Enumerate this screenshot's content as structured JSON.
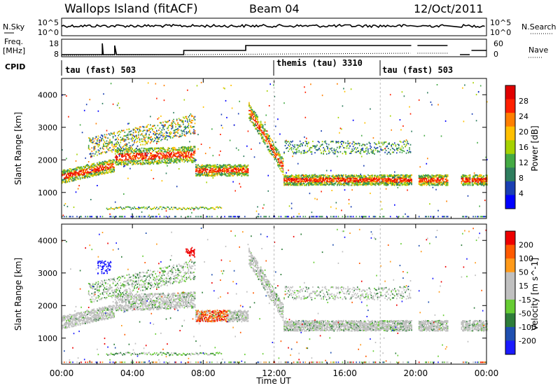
{
  "header": {
    "title": "Wallops Island (fitACF)",
    "beam": "Beam 04",
    "date": "12/Oct/2011"
  },
  "strip_labels": {
    "nsky": "N.Sky",
    "freq": "Freq.",
    "mhz": "[MHz]",
    "cpid": "CPID",
    "nsearch": "N.Search",
    "nave": "Nave",
    "nsky_ticks": [
      "10^5",
      "10^0"
    ],
    "freq_ticks": [
      "18",
      "8"
    ],
    "nave_ticks": [
      "60",
      "0"
    ]
  },
  "cpid_segments": [
    {
      "label": "tau (fast) 503",
      "start_hour": 0
    },
    {
      "label": "themis (tau) 3310",
      "start_hour": 12
    },
    {
      "label": "tau (fast) 503",
      "start_hour": 18
    }
  ],
  "colors": {
    "power": [
      "#0000ff",
      "#1a3fb3",
      "#2e7d5e",
      "#44aa44",
      "#a6d200",
      "#ffc000",
      "#ff7f00",
      "#ff2000",
      "#e00000"
    ],
    "velocity": [
      "#1a1aff",
      "#1f4fb0",
      "#2e7d3a",
      "#66cc33",
      "#c0c0c0",
      "#c0c0c0",
      "#ff9a1a",
      "#ff5a00",
      "#ee0000"
    ]
  },
  "chart_data": [
    {
      "type": "heatmap",
      "name": "power-panel",
      "ylabel": "Slant Range [km]",
      "yticks": [
        "1000",
        "2000",
        "3000",
        "4000"
      ],
      "ylim": [
        200,
        4500
      ],
      "colorbar_label": "Power [dB]",
      "colorbar_ticks": [
        "28",
        "24",
        "20",
        "16",
        "12",
        "8",
        "4"
      ]
    },
    {
      "type": "heatmap",
      "name": "velocity-panel",
      "ylabel": "Slant Range [km]",
      "yticks": [
        "1000",
        "2000",
        "3000",
        "4000"
      ],
      "ylim": [
        200,
        4500
      ],
      "colorbar_label": "Velocity [m s^-1]",
      "colorbar_ticks": [
        "200",
        "100",
        "50",
        "15",
        "-15",
        "-50",
        "-100",
        "-200"
      ]
    }
  ],
  "x_axis": {
    "label": "Time UT",
    "ticks": [
      "00:00",
      "04:00",
      "08:00",
      "12:00",
      "16:00",
      "20:00",
      "00:00"
    ],
    "xlim_hours": [
      0,
      24
    ]
  }
}
